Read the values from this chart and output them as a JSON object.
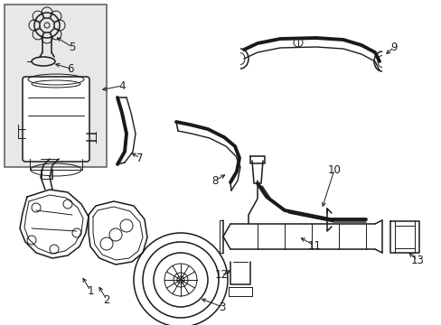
{
  "bg_color": "#ffffff",
  "line_color": "#1a1a1a",
  "box_bg": "#e8e8e8",
  "fig_width": 4.89,
  "fig_height": 3.6,
  "dpi": 100,
  "lw_hose": 2.8,
  "lw_hose_inner": 1.0,
  "lw_part": 1.1,
  "lw_thin": 0.7,
  "lw_leader": 0.7,
  "fs_label": 8.5
}
